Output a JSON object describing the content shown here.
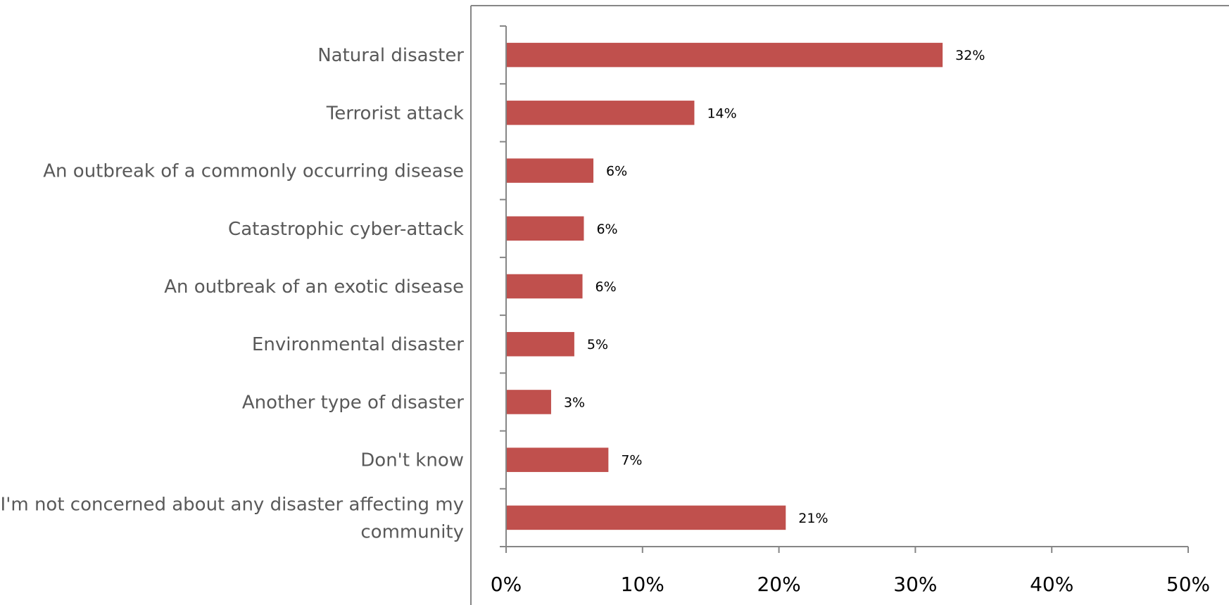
{
  "chart_data": {
    "type": "bar",
    "orientation": "horizontal",
    "categories": [
      [
        "Natural disaster"
      ],
      [
        "Terrorist attack"
      ],
      [
        "An outbreak of a commonly occurring disease"
      ],
      [
        "Catastrophic cyber-attack"
      ],
      [
        "An outbreak of an exotic disease"
      ],
      [
        "Environmental disaster"
      ],
      [
        "Another type of disaster"
      ],
      [
        "Don't know"
      ],
      [
        "I'm not concerned about any disaster affecting my",
        "community"
      ]
    ],
    "values": [
      32,
      14,
      6,
      6,
      6,
      5,
      3,
      7,
      21
    ],
    "plotted_values": [
      32,
      13.8,
      6.4,
      5.7,
      5.6,
      5.0,
      3.3,
      7.5,
      20.5
    ],
    "data_labels": [
      "32%",
      "14%",
      "6%",
      "6%",
      "6%",
      "5%",
      "3%",
      "7%",
      "21%"
    ],
    "x_ticks": [
      "0%",
      "10%",
      "20%",
      "30%",
      "40%",
      "50%"
    ],
    "xlim": [
      0,
      50
    ],
    "title": "",
    "xlabel": "",
    "ylabel": "",
    "grid": false,
    "legend": "none",
    "bar_color": "#c0504d",
    "axis_color": "#868686",
    "category_text_color": "#595959"
  }
}
